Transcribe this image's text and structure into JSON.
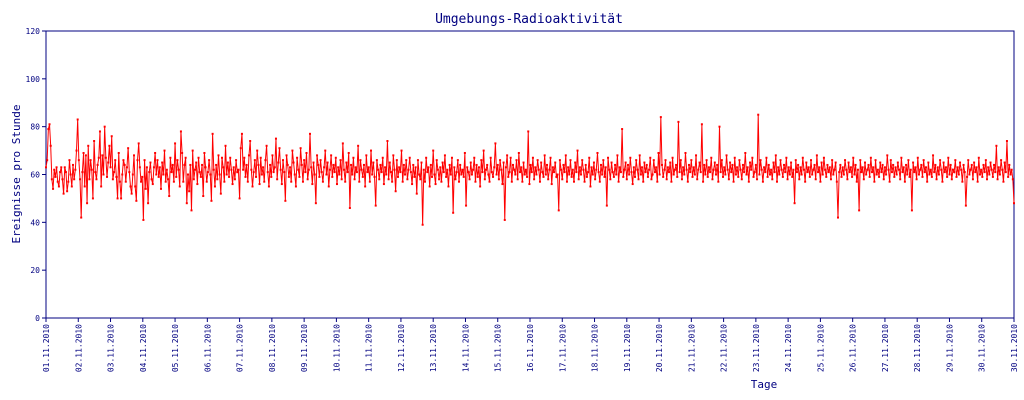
{
  "chart_data": {
    "type": "line",
    "title": "Umgebungs-Radioaktivität",
    "xlabel": "Tage",
    "ylabel": "Ereignisse pro Stunde",
    "ylim": [
      0,
      120
    ],
    "yticks": [
      "0",
      "20",
      "40",
      "60",
      "80",
      "100",
      "120"
    ],
    "xticks": [
      "01.11.2010",
      "02.11.2010",
      "03.11.2010",
      "04.11.2010",
      "05.11.2010",
      "06.11.2010",
      "07.11.2010",
      "08.11.2010",
      "09.11.2010",
      "10.11.2010",
      "11.11.2010",
      "12.11.2010",
      "13.11.2010",
      "14.11.2010",
      "15.11.2010",
      "16.11.2010",
      "17.11.2010",
      "18.11.2010",
      "19.11.2010",
      "20.11.2010",
      "21.11.2010",
      "22.11.2010",
      "23.11.2010",
      "24.11.2010",
      "25.11.2010",
      "26.11.2010",
      "27.11.2010",
      "28.11.2010",
      "29.11.2010",
      "30.11.2010",
      "30.11.2010"
    ],
    "grid": false,
    "series": [
      {
        "color": "#ff0000",
        "sampling": "hourly",
        "values": [
          63,
          66,
          79,
          81,
          72,
          58,
          54,
          62,
          59,
          63,
          57,
          55,
          61,
          63,
          58,
          52,
          63,
          61,
          53,
          57,
          66,
          60,
          55,
          64,
          58,
          62,
          70,
          83,
          66,
          58,
          42,
          61,
          69,
          55,
          68,
          48,
          72,
          58,
          66,
          62,
          50,
          74,
          61,
          58,
          64,
          67,
          78,
          55,
          68,
          60,
          80,
          67,
          59,
          65,
          72,
          63,
          76,
          58,
          61,
          66,
          59,
          50,
          69,
          57,
          50,
          60,
          66,
          64,
          57,
          63,
          71,
          61,
          55,
          52,
          60,
          68,
          55,
          49,
          66,
          73,
          63,
          57,
          59,
          41,
          66,
          54,
          63,
          48,
          61,
          65,
          58,
          56,
          63,
          69,
          60,
          66,
          59,
          63,
          54,
          65,
          60,
          70,
          57,
          62,
          58,
          51,
          67,
          61,
          64,
          57,
          73,
          59,
          66,
          62,
          55,
          78,
          69,
          57,
          64,
          67,
          48,
          60,
          53,
          64,
          45,
          70,
          58,
          62,
          65,
          56,
          67,
          61,
          59,
          64,
          51,
          69,
          63,
          57,
          61,
          66,
          60,
          49,
          77,
          62,
          55,
          64,
          58,
          68,
          60,
          52,
          67,
          63,
          57,
          72,
          60,
          65,
          59,
          67,
          62,
          56,
          63,
          58,
          66,
          61,
          62,
          50,
          71,
          77,
          62,
          67,
          59,
          64,
          57,
          68,
          74,
          62,
          55,
          61,
          66,
          59,
          70,
          64,
          56,
          67,
          60,
          63,
          57,
          66,
          72,
          61,
          55,
          64,
          59,
          68,
          61,
          63,
          75,
          58,
          65,
          71,
          62,
          56,
          66,
          61,
          49,
          68,
          64,
          59,
          63,
          57,
          70,
          65,
          60,
          55,
          67,
          62,
          59,
          71,
          64,
          57,
          66,
          61,
          69,
          58,
          62,
          77,
          63,
          56,
          65,
          60,
          48,
          68,
          64,
          59,
          66,
          61,
          57,
          63,
          70,
          60,
          65,
          55,
          62,
          68,
          59,
          64,
          61,
          67,
          56,
          63,
          60,
          66,
          58,
          73,
          62,
          57,
          65,
          61,
          69,
          46,
          64,
          60,
          67,
          58,
          63,
          61,
          72,
          57,
          66,
          62,
          59,
          64,
          55,
          68,
          61,
          63,
          57,
          70,
          60,
          65,
          59,
          47,
          66,
          62,
          58,
          64,
          61,
          67,
          56,
          63,
          60,
          74,
          58,
          65,
          61,
          57,
          68,
          62,
          53,
          66,
          59,
          63,
          61,
          70,
          57,
          64,
          60,
          66,
          58,
          62,
          67,
          61,
          56,
          64,
          59,
          63,
          52,
          66,
          60,
          58,
          65,
          39,
          62,
          57,
          67,
          61,
          63,
          55,
          64,
          59,
          70,
          60,
          56,
          66,
          62,
          58,
          63,
          57,
          65,
          61,
          68,
          59,
          62,
          55,
          64,
          60,
          67,
          44,
          63,
          58,
          61,
          66,
          57,
          64,
          60,
          62,
          59,
          69,
          47,
          63,
          61,
          58,
          65,
          60,
          62,
          67,
          57,
          64,
          59,
          63,
          55,
          66,
          61,
          70,
          58,
          62,
          64,
          60,
          57,
          67,
          61,
          59,
          63,
          73,
          60,
          64,
          58,
          66,
          62,
          56,
          65,
          41,
          63,
          68,
          59,
          61,
          67,
          57,
          64,
          62,
          60,
          66,
          58,
          69,
          61,
          63,
          57,
          65,
          60,
          62,
          59,
          78,
          56,
          64,
          61,
          67,
          58,
          63,
          60,
          66,
          62,
          57,
          65,
          61,
          59,
          68,
          60,
          64,
          58,
          62,
          67,
          56,
          63,
          61,
          65,
          59,
          60,
          45,
          66,
          62,
          58,
          64,
          61,
          68,
          57,
          63,
          60,
          66,
          59,
          62,
          57,
          65,
          61,
          70,
          58,
          63,
          60,
          66,
          62,
          57,
          64,
          59,
          61,
          67,
          55,
          63,
          60,
          65,
          58,
          62,
          69,
          61,
          57,
          64,
          60,
          66,
          59,
          63,
          47,
          67,
          62,
          58,
          65,
          61,
          59,
          64,
          60,
          68,
          57,
          63,
          61,
          79,
          59,
          62,
          65,
          58,
          64,
          60,
          67,
          61,
          56,
          63,
          59,
          66,
          62,
          58,
          68,
          60,
          63,
          57,
          65,
          61,
          64,
          59,
          62,
          67,
          58,
          60,
          66,
          61,
          63,
          57,
          69,
          60,
          84,
          64,
          59,
          62,
          66,
          58,
          63,
          61,
          65,
          57,
          67,
          60,
          62,
          64,
          59,
          82,
          61,
          66,
          58,
          63,
          60,
          69,
          62,
          57,
          64,
          61,
          66,
          59,
          63,
          60,
          68,
          58,
          62,
          65,
          61,
          81,
          57,
          64,
          60,
          66,
          59,
          63,
          61,
          67,
          58,
          62,
          65,
          60,
          64,
          57,
          80,
          61,
          66,
          59,
          63,
          60,
          68,
          62,
          58,
          65,
          61,
          64,
          57,
          67,
          60,
          63,
          59,
          66,
          62,
          58,
          64,
          61,
          69,
          60,
          63,
          57,
          65,
          62,
          67,
          59,
          61,
          64,
          58,
          85,
          60,
          66,
          62,
          57,
          63,
          61,
          67,
          59,
          64,
          60,
          62,
          58,
          65,
          61,
          68,
          57,
          63,
          60,
          66,
          62,
          59,
          64,
          61,
          67,
          58,
          63,
          60,
          65,
          59,
          62,
          48,
          66,
          61,
          64,
          58,
          63,
          60,
          67,
          62,
          57,
          65,
          61,
          63,
          59,
          66,
          60,
          62,
          64,
          58,
          68,
          61,
          63,
          57,
          65,
          60,
          67,
          62,
          59,
          64,
          61,
          63,
          58,
          66,
          60,
          62,
          65,
          57,
          42,
          61,
          64,
          59,
          63,
          60,
          66,
          62,
          58,
          65,
          61,
          63,
          59,
          67,
          60,
          64,
          57,
          62,
          45,
          66,
          61,
          63,
          58,
          65,
          60,
          62,
          64,
          59,
          67,
          61,
          63,
          57,
          66,
          60,
          62,
          59,
          65,
          61,
          64,
          58,
          63,
          60,
          68,
          62,
          57,
          66,
          61,
          64,
          59,
          63,
          60,
          65,
          62,
          58,
          67,
          61,
          63,
          57,
          64,
          60,
          66,
          59,
          62,
          45,
          65,
          61,
          63,
          58,
          67,
          60,
          62,
          64,
          59,
          66,
          61,
          63,
          57,
          65,
          60,
          62,
          59,
          68,
          61,
          64,
          58,
          63,
          60,
          66,
          62,
          57,
          65,
          61,
          63,
          59,
          67,
          60,
          64,
          58,
          62,
          61,
          66,
          59,
          63,
          60,
          65,
          62,
          57,
          64,
          61,
          47,
          59,
          66,
          60,
          62,
          64,
          58,
          65,
          61,
          63,
          57,
          67,
          60,
          62,
          59,
          64,
          61,
          66,
          58,
          63,
          60,
          65,
          62,
          59,
          64,
          61,
          72,
          58,
          63,
          60,
          66,
          62,
          57,
          65,
          61,
          74,
          59,
          64,
          60,
          62,
          58,
          48
        ]
      }
    ]
  }
}
